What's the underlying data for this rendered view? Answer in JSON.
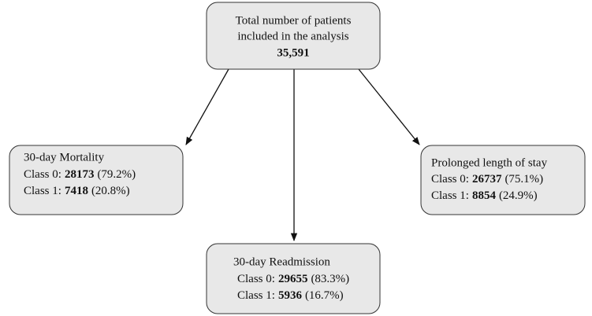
{
  "root": {
    "lines": [
      "Total number of patients",
      "included in the analysis"
    ],
    "count": "35,591"
  },
  "nodes": [
    {
      "title": "30-day Mortality",
      "rows": [
        {
          "label": "Class 0:",
          "count": "28173",
          "pct": "(79.2%)"
        },
        {
          "label": "Class 1:",
          "count": "7418",
          "pct": "(20.8%)"
        }
      ]
    },
    {
      "title": "Prolonged length of stay",
      "rows": [
        {
          "label": "Class 0:",
          "count": "26737",
          "pct": "(75.1%)"
        },
        {
          "label": "Class 1:",
          "count": "8854",
          "pct": "(24.9%)"
        }
      ]
    },
    {
      "title": "30-day Readmission",
      "rows": [
        {
          "label": "Class 0:",
          "count": "29655",
          "pct": "(83.3%)"
        },
        {
          "label": "Class 1:",
          "count": "5936",
          "pct": "(16.7%)"
        }
      ]
    }
  ]
}
